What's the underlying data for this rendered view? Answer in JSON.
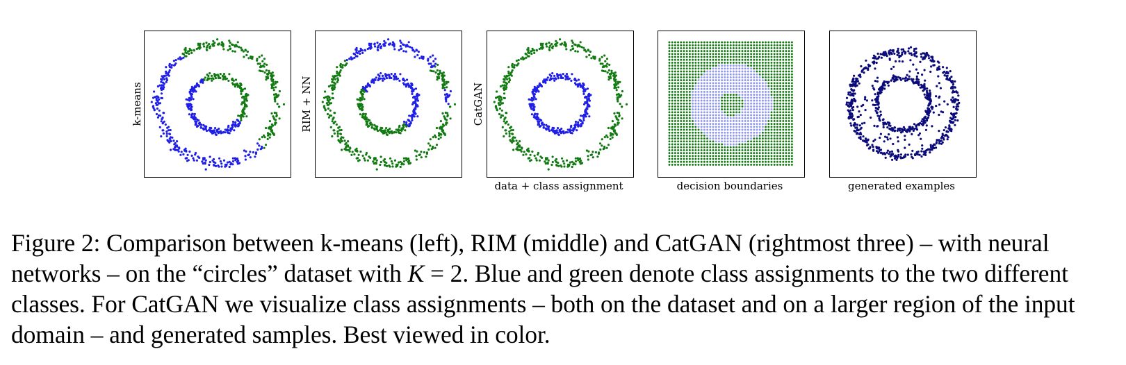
{
  "colors": {
    "blue": "#1f1fe6",
    "green": "#137a13",
    "navy": "#0b0b7a",
    "light_blue": "#8f97f0"
  },
  "panels": [
    {
      "id": "kmeans",
      "ylabel": "k-means",
      "xlabel": "",
      "kind": "kmeans"
    },
    {
      "id": "rim",
      "ylabel": "RIM + NN",
      "xlabel": "",
      "kind": "rim"
    },
    {
      "id": "catgan",
      "ylabel": "CatGAN",
      "xlabel": "data + class assignment",
      "kind": "catgan"
    },
    {
      "id": "boundaries",
      "ylabel": "",
      "xlabel": "decision boundaries",
      "kind": "boundaries"
    },
    {
      "id": "generated",
      "ylabel": "",
      "xlabel": "generated examples",
      "kind": "generated"
    }
  ],
  "caption": {
    "part1": "Figure 2: Comparison between k-means (left), RIM (middle) and CatGAN (rightmost three) – with neural networks – on the “circles” dataset with ",
    "var": "K",
    "part2": " = 2. Blue and green denote class assignments to the two different classes. For CatGAN we visualize class assignments – both on the dataset and on a larger region of the input domain – and generated samples. Best viewed in color."
  }
}
